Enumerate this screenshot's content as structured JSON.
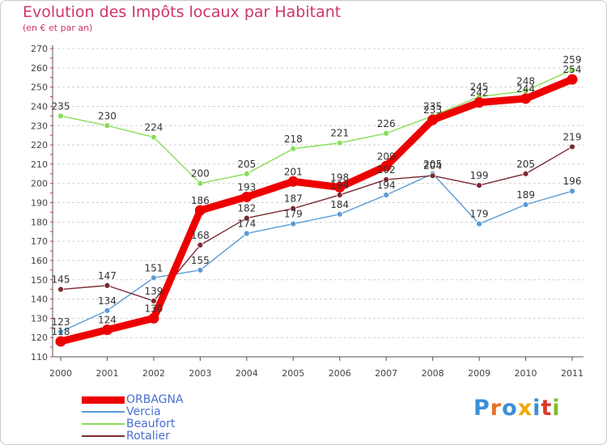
{
  "chart_data": {
    "type": "line",
    "title": "Evolution des Impôts locaux par Habitant",
    "subtitle": "(en € et par an)",
    "xlabel": "",
    "ylabel": "",
    "x": [
      "2000",
      "2001",
      "2002",
      "2003",
      "2004",
      "2005",
      "2006",
      "2007",
      "2008",
      "2009",
      "2010",
      "2011"
    ],
    "ylim": [
      110,
      270
    ],
    "yticks": [
      110,
      120,
      130,
      140,
      150,
      160,
      170,
      180,
      190,
      200,
      210,
      220,
      230,
      240,
      250,
      260,
      270
    ],
    "grid": "horizontal dashed",
    "series": [
      {
        "name": "ORBAGNA",
        "color": "#ee0000",
        "values": [
          118,
          124,
          130,
          186,
          193,
          201,
          198,
          209,
          233,
          242,
          244,
          254
        ],
        "labels": [
          "118",
          "124",
          "130",
          "186",
          "193",
          "201",
          "198",
          "209",
          "233",
          "242",
          "244",
          "254"
        ]
      },
      {
        "name": "Vercia",
        "color": "#5a9bd5",
        "values": [
          123,
          134,
          151,
          155,
          174,
          179,
          184,
          194,
          205,
          179,
          189,
          196
        ],
        "labels": [
          "123",
          "134",
          "151",
          "155",
          "174",
          "179",
          "184",
          "194",
          "205",
          "179",
          "189",
          "196"
        ]
      },
      {
        "name": "Beaufort",
        "color": "#88dd55",
        "values": [
          235,
          230,
          224,
          200,
          205,
          218,
          221,
          226,
          235,
          245,
          248,
          259
        ],
        "labels": [
          "235",
          "230",
          "224",
          "200",
          "205",
          "218",
          "221",
          "226",
          "235",
          "245",
          "248",
          "259"
        ]
      },
      {
        "name": "Rotalier",
        "color": "#7a2a33",
        "values": [
          145,
          147,
          139,
          168,
          182,
          187,
          194,
          202,
          204,
          199,
          205,
          219
        ],
        "labels": [
          "145",
          "147",
          "139",
          "168",
          "182",
          "187",
          "194",
          "202",
          "204",
          "199",
          "205",
          "219"
        ]
      }
    ]
  },
  "legend": {
    "items": [
      {
        "label": "ORBAGNA",
        "color": "#ee0000"
      },
      {
        "label": "Vercia",
        "color": "#5a9bd5"
      },
      {
        "label": "Beaufort",
        "color": "#88dd55"
      },
      {
        "label": "Rotalier",
        "color": "#7a2a33"
      }
    ]
  },
  "logo": {
    "text": "Proxiti",
    "letter_colors": [
      "#3a8fd6",
      "#e8702a",
      "#3a8fd6",
      "#f2a900",
      "#3a8fd6",
      "#d93a2b",
      "#7cbf2a"
    ]
  }
}
